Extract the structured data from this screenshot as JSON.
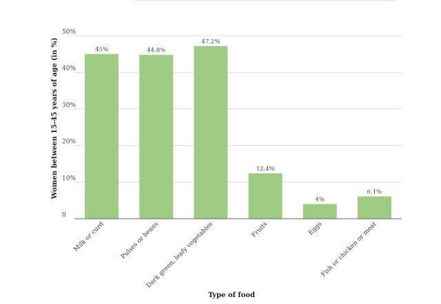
{
  "chart_data": {
    "type": "bar",
    "title": "",
    "xlabel": "Type of food",
    "ylabel": "Women between 15-45 years of age (in %)",
    "categories": [
      "Milk or curd",
      "Pulses or beans",
      "Dark green, leafy vegetables",
      "Fruits",
      "Eggs",
      "Fish or chicken or meat"
    ],
    "values": [
      45,
      44.8,
      47.2,
      12.4,
      4,
      6.1
    ],
    "data_labels": [
      "45%",
      "44.8%",
      "47.2%",
      "12.4%",
      "4%",
      "6.1%"
    ],
    "y_ticks": [
      0,
      10,
      20,
      30,
      40,
      50
    ],
    "y_tick_labels": [
      "0",
      "10%",
      "20%",
      "30%",
      "40%",
      "50%"
    ],
    "ylim": [
      0,
      50
    ],
    "grid": true,
    "legend": "none",
    "bar_color": "#9fcb85"
  }
}
